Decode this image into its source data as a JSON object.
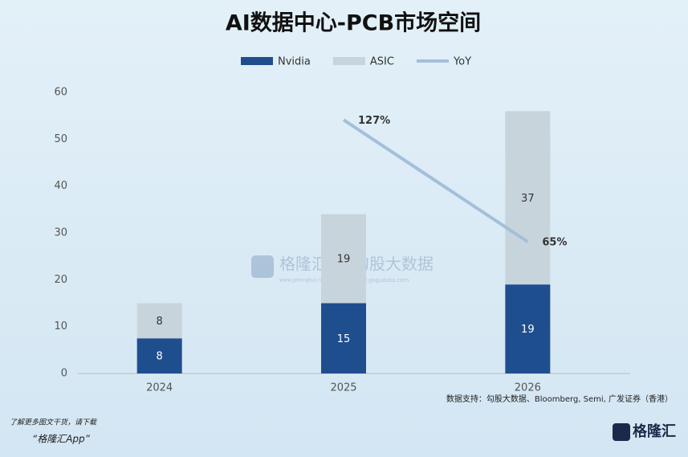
{
  "chart_data": {
    "type": "stacked_bar_line",
    "title": "AI数据中心-PCB市场空间",
    "categories": [
      "2024",
      "2025",
      "2026"
    ],
    "series": [
      {
        "name": "Nvidia",
        "color": "#1f4e8f",
        "values": [
          7.5,
          15,
          19
        ],
        "value_labels": [
          "8",
          "15",
          "19"
        ]
      },
      {
        "name": "ASIC",
        "color": "#c8d4db",
        "values": [
          7.5,
          19,
          37
        ],
        "value_labels": [
          "8",
          "19",
          "37"
        ]
      },
      {
        "name": "YoY",
        "color": "#a3bfda",
        "axis": "y2",
        "values": [
          null,
          127,
          65
        ],
        "value_labels": [
          null,
          "127%",
          "65%"
        ]
      }
    ],
    "ylim": [
      0,
      60
    ],
    "yticks": [
      0,
      10,
      20,
      30,
      40,
      50,
      60
    ],
    "y2lim": [
      -2,
      141
    ],
    "grid": false,
    "legend": "top"
  },
  "source": "数据支持：勾股大数据、Bloomberg, Semi, 广发证券（香港）",
  "footer": {
    "line1": "了解更多图文干货，请下载",
    "line2": "“格隆汇App”"
  },
  "watermark": {
    "brand": "格隆汇",
    "brand_url": "www.gelonghui.com",
    "partner": "勾股大数据",
    "partner_url": "www.gogudata.com"
  },
  "logo": "格隆汇"
}
